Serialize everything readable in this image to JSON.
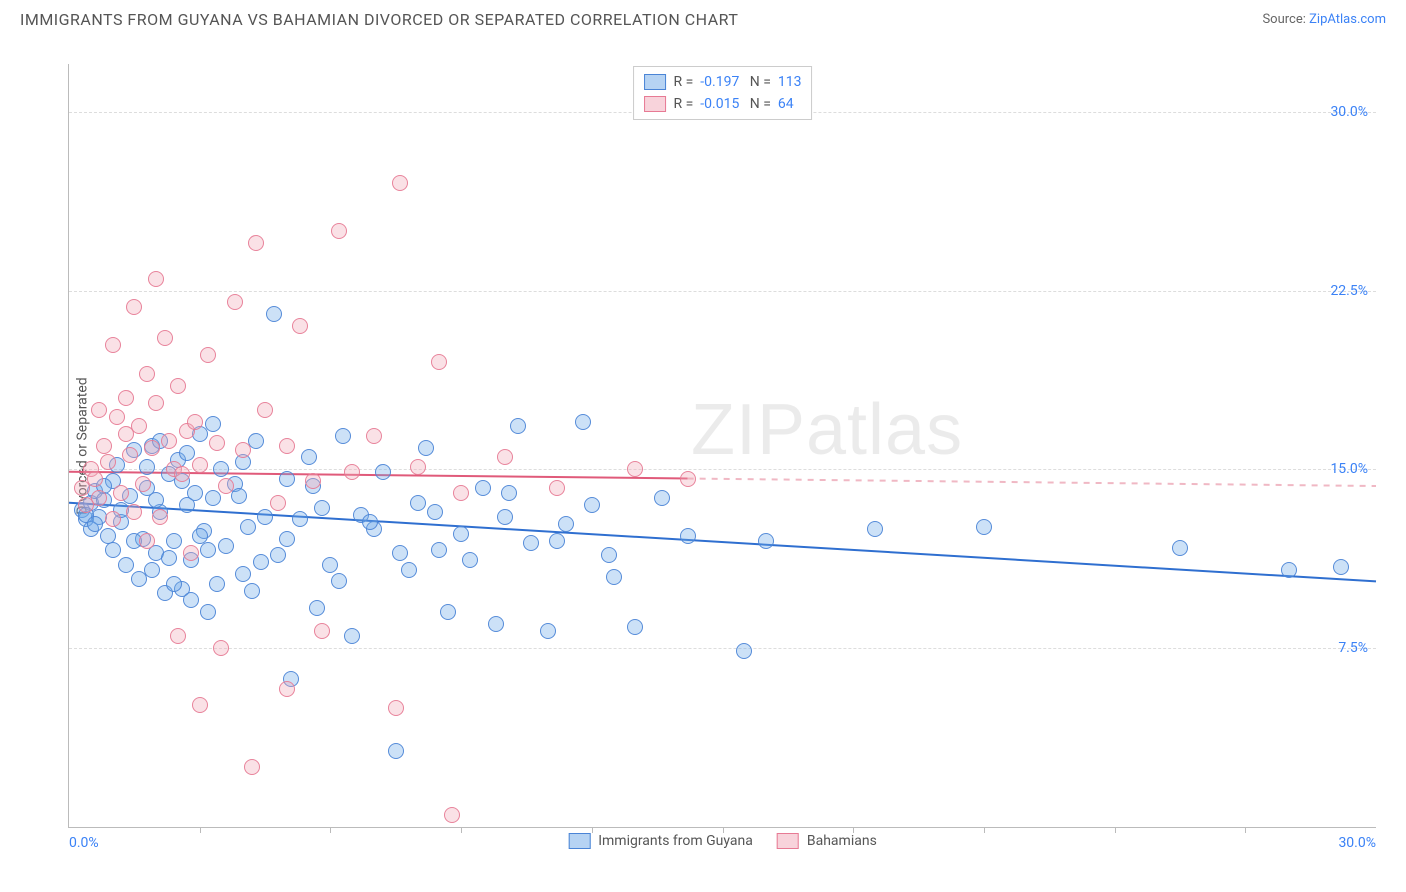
{
  "title": "IMMIGRANTS FROM GUYANA VS BAHAMIAN DIVORCED OR SEPARATED CORRELATION CHART",
  "source_label": "Source:",
  "source_name": "ZipAtlas.com",
  "watermark": {
    "prefix": "ZIP",
    "suffix": "atlas"
  },
  "yaxis_label": "Divorced or Separated",
  "chart": {
    "type": "scatter",
    "xlim": [
      0,
      30
    ],
    "ylim": [
      0,
      32
    ],
    "background_color": "#ffffff",
    "grid_color": "#dddddd",
    "axis_color": "#bbbbbb",
    "tick_color": "#3b82f6",
    "tick_fontsize": 14,
    "yticks": [
      {
        "value": 7.5,
        "label": "7.5%"
      },
      {
        "value": 15.0,
        "label": "15.0%"
      },
      {
        "value": 22.5,
        "label": "22.5%"
      },
      {
        "value": 30.0,
        "label": "30.0%"
      }
    ],
    "xticks": [
      {
        "value": 0,
        "label": "0.0%",
        "align": "left"
      },
      {
        "value": 30,
        "label": "30.0%",
        "align": "right"
      }
    ],
    "xminor": [
      3,
      6,
      9,
      12,
      15,
      18,
      21,
      24,
      27
    ],
    "point_radius": 8,
    "point_border_alpha": 0.9,
    "point_fill_alpha": 0.35,
    "series": [
      {
        "key": "guyana",
        "label": "Immigrants from Guyana",
        "color": "#6ea8e8",
        "border": "#4a84d6",
        "R": "-0.197",
        "N": "113",
        "trend": {
          "y0": 13.6,
          "y1": 10.3,
          "x_solid_max": 30,
          "solid_color": "#2f6fd0",
          "width": 2
        },
        "points": [
          [
            0.3,
            13.3
          ],
          [
            0.4,
            12.9
          ],
          [
            0.5,
            13.6
          ],
          [
            0.6,
            14.1
          ],
          [
            0.7,
            13.0
          ],
          [
            0.5,
            12.5
          ],
          [
            0.8,
            13.7
          ],
          [
            0.9,
            12.2
          ],
          [
            1.0,
            14.5
          ],
          [
            1.1,
            15.2
          ],
          [
            1.2,
            12.8
          ],
          [
            1.3,
            11.0
          ],
          [
            1.4,
            13.9
          ],
          [
            1.5,
            15.8
          ],
          [
            1.6,
            10.4
          ],
          [
            1.7,
            12.1
          ],
          [
            1.8,
            14.2
          ],
          [
            1.9,
            16.0
          ],
          [
            2.0,
            11.5
          ],
          [
            2.1,
            13.2
          ],
          [
            2.2,
            9.8
          ],
          [
            2.3,
            14.8
          ],
          [
            2.4,
            12.0
          ],
          [
            2.5,
            15.4
          ],
          [
            2.6,
            10.0
          ],
          [
            2.7,
            13.5
          ],
          [
            2.8,
            11.2
          ],
          [
            2.9,
            14.0
          ],
          [
            3.0,
            16.5
          ],
          [
            3.1,
            12.4
          ],
          [
            3.2,
            9.0
          ],
          [
            3.3,
            13.8
          ],
          [
            3.5,
            15.0
          ],
          [
            3.6,
            11.8
          ],
          [
            3.8,
            14.4
          ],
          [
            4.0,
            10.6
          ],
          [
            4.1,
            12.6
          ],
          [
            4.3,
            16.2
          ],
          [
            4.5,
            13.0
          ],
          [
            4.7,
            21.5
          ],
          [
            4.8,
            11.4
          ],
          [
            5.0,
            14.6
          ],
          [
            5.1,
            6.2
          ],
          [
            5.3,
            12.9
          ],
          [
            5.5,
            15.5
          ],
          [
            5.7,
            9.2
          ],
          [
            5.8,
            13.4
          ],
          [
            6.0,
            11.0
          ],
          [
            6.3,
            16.4
          ],
          [
            6.5,
            8.0
          ],
          [
            6.7,
            13.1
          ],
          [
            7.0,
            12.5
          ],
          [
            7.2,
            14.9
          ],
          [
            7.5,
            3.2
          ],
          [
            7.8,
            10.8
          ],
          [
            8.0,
            13.6
          ],
          [
            8.2,
            15.9
          ],
          [
            8.5,
            11.6
          ],
          [
            8.7,
            9.0
          ],
          [
            9.0,
            12.3
          ],
          [
            9.5,
            14.2
          ],
          [
            9.8,
            8.5
          ],
          [
            10.0,
            13.0
          ],
          [
            10.3,
            16.8
          ],
          [
            10.6,
            11.9
          ],
          [
            11.0,
            8.2
          ],
          [
            11.4,
            12.7
          ],
          [
            11.8,
            17.0
          ],
          [
            12.0,
            13.5
          ],
          [
            12.5,
            10.5
          ],
          [
            13.0,
            8.4
          ],
          [
            14.2,
            12.2
          ],
          [
            15.5,
            7.4
          ],
          [
            16.0,
            12.0
          ],
          [
            18.5,
            12.5
          ],
          [
            21.0,
            12.6
          ],
          [
            25.5,
            11.7
          ],
          [
            28.0,
            10.8
          ],
          [
            29.2,
            10.9
          ],
          [
            0.4,
            13.1
          ],
          [
            0.6,
            12.7
          ],
          [
            0.8,
            14.3
          ],
          [
            1.0,
            11.6
          ],
          [
            1.2,
            13.3
          ],
          [
            1.5,
            12.0
          ],
          [
            1.8,
            15.1
          ],
          [
            2.0,
            13.7
          ],
          [
            2.3,
            11.3
          ],
          [
            2.6,
            14.5
          ],
          [
            3.0,
            12.2
          ],
          [
            3.4,
            10.2
          ],
          [
            3.9,
            13.9
          ],
          [
            4.4,
            11.1
          ],
          [
            5.0,
            12.1
          ],
          [
            5.6,
            14.3
          ],
          [
            6.2,
            10.3
          ],
          [
            6.9,
            12.8
          ],
          [
            7.6,
            11.5
          ],
          [
            8.4,
            13.2
          ],
          [
            9.2,
            11.2
          ],
          [
            10.1,
            14.0
          ],
          [
            11.2,
            12.0
          ],
          [
            12.4,
            11.4
          ],
          [
            13.6,
            13.8
          ],
          [
            2.1,
            16.2
          ],
          [
            2.7,
            15.7
          ],
          [
            3.3,
            16.9
          ],
          [
            4.0,
            15.3
          ],
          [
            1.9,
            10.8
          ],
          [
            2.4,
            10.2
          ],
          [
            2.8,
            9.5
          ],
          [
            3.2,
            11.6
          ],
          [
            4.2,
            9.9
          ]
        ]
      },
      {
        "key": "bahamians",
        "label": "Bahamians",
        "color": "#f2a8b8",
        "border": "#e77a94",
        "R": "-0.015",
        "N": "64",
        "trend": {
          "y0": 14.9,
          "y1": 14.3,
          "x_solid_max": 14.2,
          "solid_color": "#e05a7a",
          "dash_color": "#f0b8c4",
          "width": 2
        },
        "points": [
          [
            0.3,
            14.2
          ],
          [
            0.4,
            13.5
          ],
          [
            0.5,
            15.0
          ],
          [
            0.6,
            14.6
          ],
          [
            0.7,
            13.8
          ],
          [
            0.8,
            16.0
          ],
          [
            0.9,
            15.3
          ],
          [
            1.0,
            12.9
          ],
          [
            1.1,
            17.2
          ],
          [
            1.2,
            14.0
          ],
          [
            1.3,
            18.0
          ],
          [
            1.4,
            15.6
          ],
          [
            1.5,
            13.2
          ],
          [
            1.6,
            16.8
          ],
          [
            1.7,
            14.4
          ],
          [
            1.8,
            19.0
          ],
          [
            1.9,
            15.9
          ],
          [
            2.0,
            17.8
          ],
          [
            2.1,
            13.0
          ],
          [
            2.2,
            20.5
          ],
          [
            2.3,
            16.2
          ],
          [
            2.4,
            15.0
          ],
          [
            2.5,
            18.5
          ],
          [
            2.6,
            14.8
          ],
          [
            2.7,
            16.6
          ],
          [
            2.8,
            11.5
          ],
          [
            2.9,
            17.0
          ],
          [
            3.0,
            15.2
          ],
          [
            3.2,
            19.8
          ],
          [
            3.4,
            16.1
          ],
          [
            3.6,
            14.3
          ],
          [
            3.8,
            22.0
          ],
          [
            4.0,
            15.8
          ],
          [
            4.3,
            24.5
          ],
          [
            4.5,
            17.5
          ],
          [
            4.8,
            13.6
          ],
          [
            5.0,
            16.0
          ],
          [
            5.3,
            21.0
          ],
          [
            5.6,
            14.5
          ],
          [
            6.2,
            25.0
          ],
          [
            6.5,
            14.9
          ],
          [
            7.0,
            16.4
          ],
          [
            7.6,
            27.0
          ],
          [
            8.0,
            15.1
          ],
          [
            8.5,
            19.5
          ],
          [
            9.0,
            14.0
          ],
          [
            10.0,
            15.5
          ],
          [
            11.2,
            14.2
          ],
          [
            13.0,
            15.0
          ],
          [
            14.2,
            14.6
          ],
          [
            1.0,
            20.2
          ],
          [
            1.5,
            21.8
          ],
          [
            2.0,
            23.0
          ],
          [
            2.5,
            8.0
          ],
          [
            3.0,
            5.1
          ],
          [
            3.5,
            7.5
          ],
          [
            4.2,
            2.5
          ],
          [
            5.0,
            5.8
          ],
          [
            5.8,
            8.2
          ],
          [
            7.5,
            5.0
          ],
          [
            8.8,
            0.5
          ],
          [
            0.7,
            17.5
          ],
          [
            1.3,
            16.5
          ],
          [
            1.8,
            12.0
          ]
        ]
      }
    ]
  },
  "legend_top_labels": {
    "R": "R =",
    "N": "N ="
  },
  "legend_bottom": [
    "Immigrants from Guyana",
    "Bahamians"
  ]
}
